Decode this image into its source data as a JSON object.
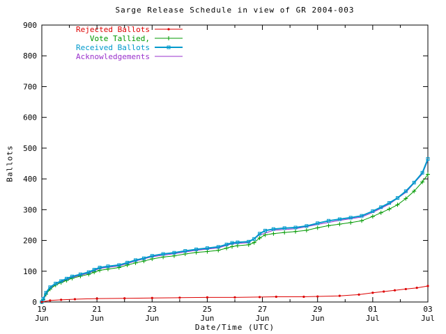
{
  "chart_data": {
    "type": "line",
    "title": "Sarge Release Schedule in view of GR 2004-003",
    "xlabel": "Date/Time (UTC)",
    "ylabel": "Ballots",
    "x_range": [
      0,
      14
    ],
    "y_range": [
      0,
      900
    ],
    "y_ticks": [
      0,
      100,
      200,
      300,
      400,
      500,
      600,
      700,
      800,
      900
    ],
    "x_ticks": [
      {
        "pos": 0,
        "day": "19",
        "month": "Jun"
      },
      {
        "pos": 2,
        "day": "21",
        "month": "Jun"
      },
      {
        "pos": 4,
        "day": "23",
        "month": "Jun"
      },
      {
        "pos": 6,
        "day": "25",
        "month": "Jun"
      },
      {
        "pos": 8,
        "day": "27",
        "month": "Jun"
      },
      {
        "pos": 10,
        "day": "29",
        "month": "Jun"
      },
      {
        "pos": 12,
        "day": "01",
        "month": "Jul"
      },
      {
        "pos": 14,
        "day": "03",
        "month": "Jul"
      }
    ],
    "x_minor": [
      1,
      3,
      5,
      7,
      9,
      11,
      13
    ],
    "grid": false,
    "legend_position": "top-left",
    "draw_order": [
      3,
      1,
      2,
      0
    ],
    "series": [
      {
        "name": "Rejected Ballots",
        "color": "#dd0000",
        "marker": "dot",
        "width": 1,
        "points": [
          [
            0,
            0
          ],
          [
            0.3,
            5
          ],
          [
            0.7,
            7
          ],
          [
            1.2,
            9
          ],
          [
            2.0,
            11
          ],
          [
            3.0,
            12
          ],
          [
            4.0,
            13
          ],
          [
            5.0,
            14
          ],
          [
            6.0,
            15
          ],
          [
            7.0,
            15
          ],
          [
            7.9,
            16
          ],
          [
            8.5,
            17
          ],
          [
            9.5,
            17
          ],
          [
            10.0,
            18
          ],
          [
            10.8,
            20
          ],
          [
            11.5,
            24
          ],
          [
            12.0,
            30
          ],
          [
            12.4,
            34
          ],
          [
            12.8,
            38
          ],
          [
            13.2,
            42
          ],
          [
            13.6,
            46
          ],
          [
            14.0,
            52
          ]
        ]
      },
      {
        "name": "Vote Tallied,",
        "color": "#009900",
        "marker": "plus",
        "width": 1,
        "points": [
          [
            0,
            0
          ],
          [
            0.05,
            8
          ],
          [
            0.15,
            25
          ],
          [
            0.3,
            42
          ],
          [
            0.5,
            55
          ],
          [
            0.7,
            63
          ],
          [
            0.9,
            70
          ],
          [
            1.1,
            77
          ],
          [
            1.4,
            84
          ],
          [
            1.7,
            90
          ],
          [
            1.9,
            97
          ],
          [
            2.1,
            103
          ],
          [
            2.4,
            107
          ],
          [
            2.8,
            112
          ],
          [
            3.1,
            120
          ],
          [
            3.4,
            127
          ],
          [
            3.7,
            133
          ],
          [
            4.0,
            140
          ],
          [
            4.4,
            146
          ],
          [
            4.8,
            150
          ],
          [
            5.2,
            156
          ],
          [
            5.6,
            161
          ],
          [
            6.0,
            164
          ],
          [
            6.4,
            168
          ],
          [
            6.7,
            175
          ],
          [
            6.9,
            180
          ],
          [
            7.1,
            183
          ],
          [
            7.5,
            186
          ],
          [
            7.7,
            193
          ],
          [
            7.9,
            208
          ],
          [
            8.1,
            218
          ],
          [
            8.4,
            222
          ],
          [
            8.8,
            226
          ],
          [
            9.2,
            229
          ],
          [
            9.6,
            233
          ],
          [
            10.0,
            241
          ],
          [
            10.4,
            248
          ],
          [
            10.8,
            253
          ],
          [
            11.2,
            258
          ],
          [
            11.6,
            264
          ],
          [
            12.0,
            278
          ],
          [
            12.3,
            290
          ],
          [
            12.6,
            302
          ],
          [
            12.9,
            316
          ],
          [
            13.2,
            336
          ],
          [
            13.5,
            360
          ],
          [
            13.8,
            390
          ],
          [
            14.0,
            415
          ]
        ]
      },
      {
        "name": "Received Ballots",
        "color": "#0099cc",
        "marker": "square",
        "width": 2,
        "points": [
          [
            0,
            0
          ],
          [
            0.05,
            10
          ],
          [
            0.15,
            30
          ],
          [
            0.3,
            48
          ],
          [
            0.5,
            60
          ],
          [
            0.7,
            68
          ],
          [
            0.9,
            76
          ],
          [
            1.1,
            83
          ],
          [
            1.4,
            90
          ],
          [
            1.7,
            97
          ],
          [
            1.9,
            105
          ],
          [
            2.1,
            112
          ],
          [
            2.4,
            116
          ],
          [
            2.8,
            120
          ],
          [
            3.1,
            128
          ],
          [
            3.4,
            136
          ],
          [
            3.7,
            142
          ],
          [
            4.0,
            150
          ],
          [
            4.4,
            156
          ],
          [
            4.8,
            160
          ],
          [
            5.2,
            166
          ],
          [
            5.6,
            171
          ],
          [
            6.0,
            175
          ],
          [
            6.4,
            179
          ],
          [
            6.7,
            187
          ],
          [
            6.9,
            192
          ],
          [
            7.1,
            194
          ],
          [
            7.5,
            196
          ],
          [
            7.7,
            205
          ],
          [
            7.9,
            222
          ],
          [
            8.1,
            232
          ],
          [
            8.4,
            237
          ],
          [
            8.8,
            240
          ],
          [
            9.2,
            242
          ],
          [
            9.6,
            247
          ],
          [
            10.0,
            256
          ],
          [
            10.4,
            264
          ],
          [
            10.8,
            269
          ],
          [
            11.2,
            274
          ],
          [
            11.6,
            280
          ],
          [
            12.0,
            295
          ],
          [
            12.3,
            308
          ],
          [
            12.6,
            322
          ],
          [
            12.9,
            338
          ],
          [
            13.2,
            360
          ],
          [
            13.5,
            388
          ],
          [
            13.8,
            420
          ],
          [
            14.0,
            465
          ]
        ]
      },
      {
        "name": "Acknowledgements",
        "color": "#9932cc",
        "marker": "none",
        "width": 1,
        "points": [
          [
            0,
            0
          ],
          [
            0.3,
            45
          ],
          [
            0.7,
            65
          ],
          [
            1.1,
            80
          ],
          [
            1.7,
            94
          ],
          [
            2.1,
            109
          ],
          [
            2.8,
            117
          ],
          [
            3.4,
            133
          ],
          [
            4.0,
            147
          ],
          [
            4.8,
            157
          ],
          [
            5.6,
            168
          ],
          [
            6.4,
            176
          ],
          [
            6.9,
            189
          ],
          [
            7.5,
            193
          ],
          [
            7.9,
            218
          ],
          [
            8.4,
            233
          ],
          [
            9.2,
            238
          ],
          [
            10.0,
            252
          ],
          [
            10.8,
            265
          ],
          [
            11.6,
            276
          ],
          [
            12.0,
            291
          ],
          [
            12.6,
            318
          ],
          [
            13.2,
            356
          ],
          [
            13.8,
            416
          ],
          [
            14.0,
            460
          ]
        ]
      }
    ]
  }
}
